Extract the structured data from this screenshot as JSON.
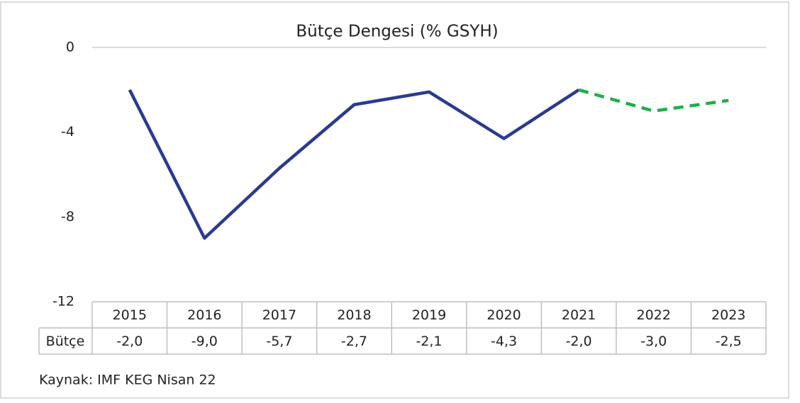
{
  "chart_data": {
    "type": "line",
    "title": "Bütçe Dengesi (% GSYH)",
    "categories": [
      "2015",
      "2016",
      "2017",
      "2018",
      "2019",
      "2020",
      "2021",
      "2022",
      "2023"
    ],
    "series": [
      {
        "name": "Bütçe",
        "color": "#2b3a8f",
        "forecast_color": "#1fae4b",
        "values": [
          -2.0,
          -9.0,
          -5.7,
          -2.7,
          -2.1,
          -4.3,
          -2.0,
          -3.0,
          -2.5
        ],
        "value_labels": [
          "-2,0",
          "-9,0",
          "-5,7",
          "-2,7",
          "-2,1",
          "-4,3",
          "-2,0",
          "-3,0",
          "-2,5"
        ]
      }
    ],
    "forecast_from": "2021",
    "ylim": [
      -12,
      0
    ],
    "yticks": [
      0,
      -4,
      -8,
      -12
    ],
    "zero_line": true,
    "source": "Kaynak: IMF KEG Nisan 22"
  }
}
